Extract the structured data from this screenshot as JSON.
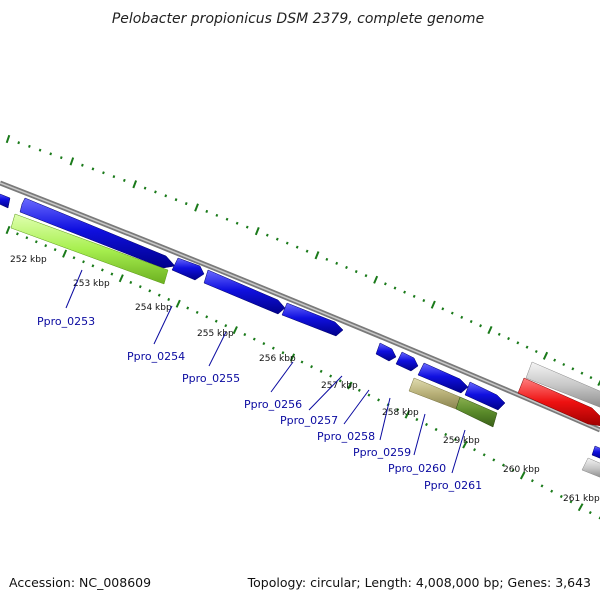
{
  "title": "Pelobacter propionicus DSM 2379, complete genome",
  "accession": "Accession: NC_008609",
  "topology": "Topology: circular; Length: 4,008,000 bp; Genes: 3,643",
  "scale_labels": [
    "252 kbp",
    "253 kbp",
    "254 kbp",
    "255 kbp",
    "256 kbp",
    "257 kbp",
    "258 kbp",
    "259 kbp",
    "260 kbp",
    "261 kbp"
  ],
  "gene_labels": [
    "Ppro_0253",
    "Ppro_0254",
    "Ppro_0255",
    "Ppro_0256",
    "Ppro_0257",
    "Ppro_0258",
    "Ppro_0259",
    "Ppro_0260",
    "Ppro_0261"
  ],
  "colors": {
    "backbone": "#808080",
    "ticks": "#1a7a1a",
    "forward_gene": "#1010e0",
    "gene_0253": "#a8f050",
    "gene_0260": "#b8b078",
    "gene_0261": "#5a8a2a",
    "red_gene": "#ee1111",
    "grey_gene": "#c8c8c8",
    "label_text": "#0a0aa0"
  }
}
